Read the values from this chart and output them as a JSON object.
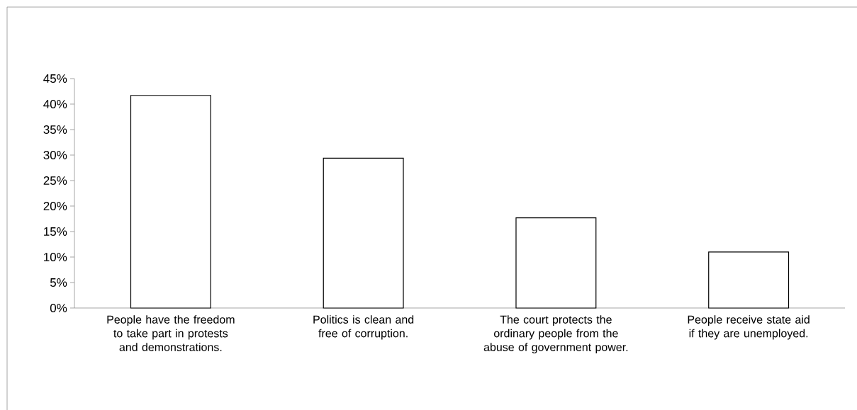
{
  "chart_data": {
    "type": "bar",
    "categories": [
      "People have the freedom to take part in protests and demonstrations.",
      "Politics is clean and free of corruption.",
      "The court protects the ordinary people from the abuse of government power.",
      "People receive state aid if they are unemployed."
    ],
    "values": [
      41.7,
      29.4,
      17.7,
      11.0
    ],
    "color": "#ffffff",
    "ylim": [
      0,
      45
    ],
    "yticks": [
      {
        "value": 0,
        "label": "0%"
      },
      {
        "value": 5,
        "label": "5%"
      },
      {
        "value": 10,
        "label": "10%"
      },
      {
        "value": 15,
        "label": "15%"
      },
      {
        "value": 20,
        "label": "20%"
      },
      {
        "value": 25,
        "label": "25%"
      },
      {
        "value": 30,
        "label": "30%"
      },
      {
        "value": 35,
        "label": "35%"
      },
      {
        "value": 40,
        "label": "40%"
      },
      {
        "value": 45,
        "label": "45%"
      }
    ]
  }
}
